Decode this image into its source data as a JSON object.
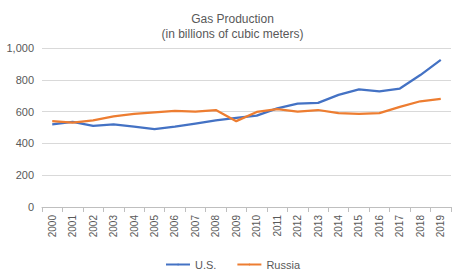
{
  "chart_data": {
    "type": "line",
    "title": "Gas Production\n(in billions of cubic meters)",
    "categories": [
      "2000",
      "2001",
      "2002",
      "2003",
      "2004",
      "2005",
      "2006",
      "2007",
      "2008",
      "2009",
      "2010",
      "2011",
      "2012",
      "2013",
      "2014",
      "2015",
      "2016",
      "2017",
      "2018",
      "2019"
    ],
    "series": [
      {
        "name": "U.S.",
        "color": "#4472c4",
        "values": [
          520,
          535,
          510,
          520,
          505,
          490,
          505,
          525,
          545,
          560,
          575,
          620,
          650,
          655,
          705,
          740,
          727,
          745,
          830,
          925
        ]
      },
      {
        "name": "Russia",
        "color": "#ed7d31",
        "values": [
          540,
          530,
          545,
          570,
          585,
          595,
          605,
          600,
          610,
          540,
          598,
          615,
          600,
          610,
          590,
          585,
          590,
          630,
          665,
          680
        ]
      }
    ],
    "ylim": [
      0,
      1000
    ],
    "yticks": [
      0,
      200,
      400,
      600,
      800,
      1000
    ],
    "grid": true,
    "legend": "bottom"
  }
}
